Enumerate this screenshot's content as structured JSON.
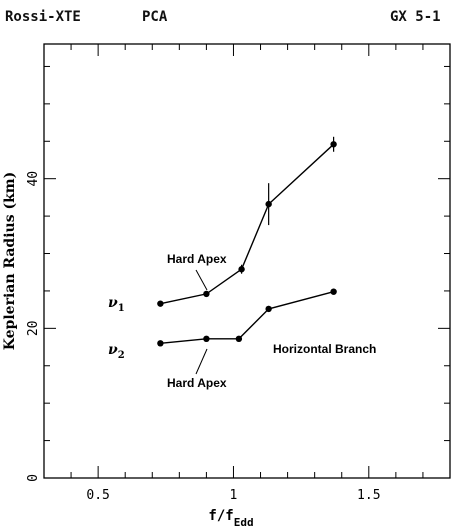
{
  "header": {
    "left": "Rossi-XTE",
    "middle": "PCA",
    "right": "GX 5-1"
  },
  "chart_data": {
    "type": "line",
    "xlabel_main": "f/f",
    "xlabel_sub": "Edd",
    "ylabel": "Keplerian Radius (km)",
    "xlim": [
      0.3,
      1.8
    ],
    "ylim": [
      0,
      58
    ],
    "x_ticks": [
      {
        "value": 0.5,
        "label": "0.5"
      },
      {
        "value": 1.0,
        "label": "1"
      },
      {
        "value": 1.5,
        "label": "1.5"
      }
    ],
    "y_ticks": [
      {
        "value": 0,
        "label": "0"
      },
      {
        "value": 20,
        "label": "20"
      },
      {
        "value": 40,
        "label": "40"
      }
    ],
    "grid": false,
    "series": [
      {
        "name": "ν1",
        "name_main": "ν",
        "name_sub": "1",
        "x": [
          0.73,
          0.9,
          1.03,
          1.13,
          1.37
        ],
        "y": [
          23.3,
          24.6,
          27.9,
          36.6,
          44.6
        ],
        "err": [
          0.3,
          0.3,
          0.6,
          2.8,
          1.0
        ]
      },
      {
        "name": "ν2",
        "name_main": "ν",
        "name_sub": "2",
        "x": [
          0.73,
          0.9,
          1.02,
          1.13,
          1.37
        ],
        "y": [
          18.0,
          18.6,
          18.6,
          22.6,
          24.9
        ],
        "err": [
          0.3,
          0.3,
          0.3,
          0.4,
          0.4
        ]
      }
    ],
    "annotations": {
      "hard_apex_upper": "Hard Apex",
      "hard_apex_lower": "Hard Apex",
      "horizontal_branch": "Horizontal Branch"
    }
  }
}
